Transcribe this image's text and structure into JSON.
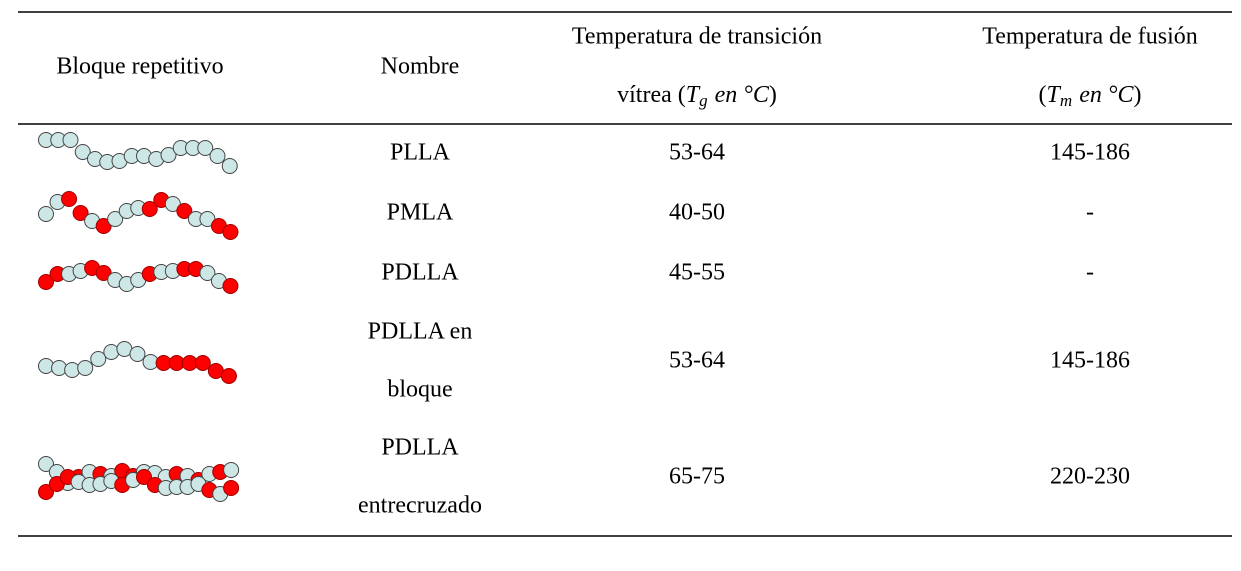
{
  "table": {
    "headers": [
      {
        "lines": [
          "Bloque repetitivo"
        ]
      },
      {
        "lines": [
          "Nombre"
        ]
      },
      {
        "line1": "Temperatura de transición",
        "prefix": "vítrea (",
        "symbol": "T",
        "subscript": "g",
        "unit": "en °C",
        "suffix": ")"
      },
      {
        "line1": "Temperatura de fusión",
        "prefix": "(",
        "symbol": "T",
        "subscript": "m",
        "unit": "en °C",
        "suffix": ")"
      }
    ],
    "rows": [
      {
        "name": [
          "PLLA"
        ],
        "tg": "53-64",
        "tm": "145-186"
      },
      {
        "name": [
          "PMLA"
        ],
        "tg": "40-50",
        "tm": "-"
      },
      {
        "name": [
          "PDLLA"
        ],
        "tg": "45-55",
        "tm": "-"
      },
      {
        "name": [
          "PDLLA en",
          "bloque"
        ],
        "tg": "53-64",
        "tm": "145-186"
      },
      {
        "name": [
          "PDLLA",
          "entrecruzado"
        ],
        "tg": "65-75",
        "tm": "220-230"
      }
    ]
  }
}
